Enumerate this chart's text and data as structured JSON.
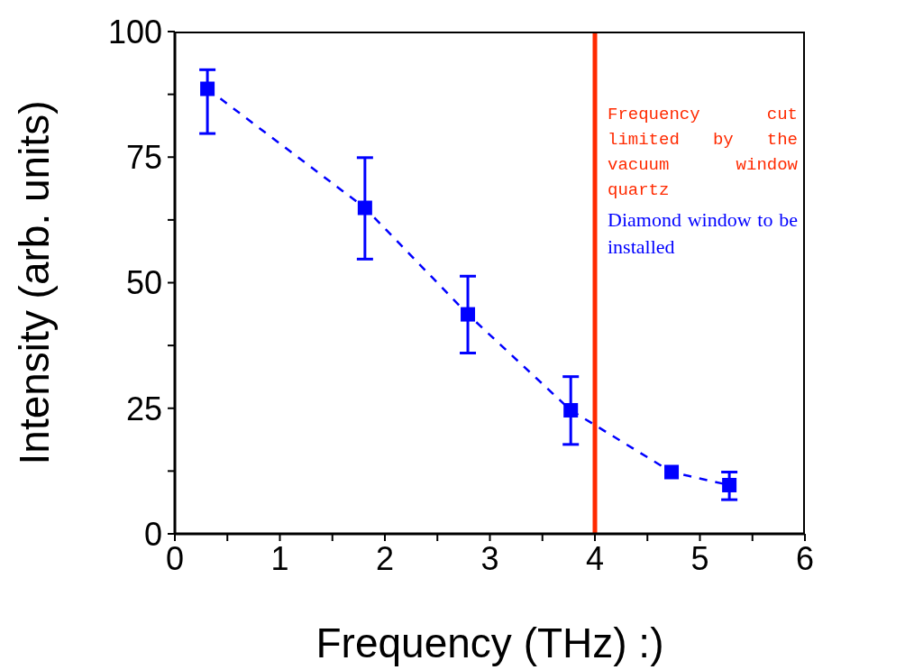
{
  "chart_data": {
    "type": "line",
    "xlabel": "Frequency (THz) :)",
    "ylabel": "Intensity (arb. units)",
    "x": [
      0.31,
      1.81,
      2.79,
      3.77,
      4.73,
      5.28
    ],
    "series": [
      {
        "color": "#0000ff",
        "values": [
          88.6,
          64.9,
          43.7,
          24.6,
          12.3,
          9.7
        ],
        "errors": [
          [
            79.7,
            92.4
          ],
          [
            54.7,
            74.9
          ],
          [
            36.0,
            51.3
          ],
          [
            17.8,
            31.3
          ],
          null,
          [
            6.8,
            12.3
          ]
        ]
      }
    ],
    "marker": "square",
    "line_style": "dashed",
    "grid": false,
    "legend": false,
    "xlim": [
      0,
      6
    ],
    "xticks": [
      0,
      {
        "value": 0.5,
        "label": null
      },
      1,
      {
        "value": 1.5,
        "label": null
      },
      2,
      {
        "value": 2.5,
        "label": null
      },
      3,
      {
        "value": 3.5,
        "label": null
      },
      4,
      {
        "value": 4.5,
        "label": null
      },
      5,
      {
        "value": 5.5,
        "label": null
      },
      6
    ],
    "ylim": [
      0,
      100
    ],
    "yticks": [
      0,
      {
        "value": 12.5,
        "label": null
      },
      25,
      {
        "value": 37.5,
        "label": null
      },
      50,
      {
        "value": 62.5,
        "label": null
      },
      75,
      {
        "value": 87.5,
        "label": null
      },
      100
    ],
    "ref_lines": [
      {
        "axis": "x",
        "value": 4,
        "label": "Frequency cut limited by the vacuum window quartz",
        "color": "#ff2a00"
      }
    ],
    "annotations": [
      "Diamond window to be installed"
    ]
  }
}
